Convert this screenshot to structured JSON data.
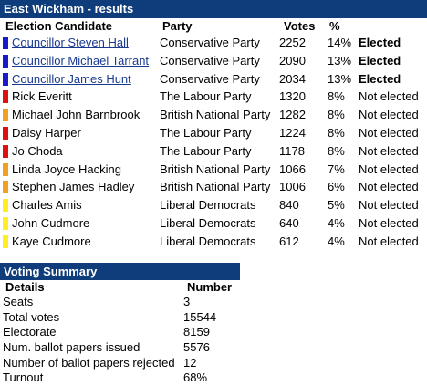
{
  "title": "East Wickham - results",
  "headers": {
    "candidate": "Election Candidate",
    "party": "Party",
    "votes": "Votes",
    "pct": "%"
  },
  "colors": {
    "header_bg": "#0f3c7a",
    "conservative": "#1a1acc",
    "labour": "#dd1111",
    "bnp": "#f2a020",
    "libdem": "#ffee22"
  },
  "candidates": [
    {
      "name": "Councillor Steven Hall",
      "party": "Conservative Party",
      "votes": "2252",
      "pct": "14%",
      "result": "Elected",
      "color": "#1a1acc",
      "link": true
    },
    {
      "name": "Councillor Michael Tarrant",
      "party": "Conservative Party",
      "votes": "2090",
      "pct": "13%",
      "result": "Elected",
      "color": "#1a1acc",
      "link": true
    },
    {
      "name": "Councillor James Hunt",
      "party": "Conservative Party",
      "votes": "2034",
      "pct": "13%",
      "result": "Elected",
      "color": "#1a1acc",
      "link": true
    },
    {
      "name": "Rick Everitt",
      "party": "The Labour Party",
      "votes": "1320",
      "pct": "8%",
      "result": "Not elected",
      "color": "#dd1111",
      "link": false
    },
    {
      "name": "Michael John Barnbrook",
      "party": "British National Party",
      "votes": "1282",
      "pct": "8%",
      "result": "Not elected",
      "color": "#f2a020",
      "link": false
    },
    {
      "name": "Daisy Harper",
      "party": "The Labour Party",
      "votes": "1224",
      "pct": "8%",
      "result": "Not elected",
      "color": "#dd1111",
      "link": false
    },
    {
      "name": "Jo Choda",
      "party": "The Labour Party",
      "votes": "1178",
      "pct": "8%",
      "result": "Not elected",
      "color": "#dd1111",
      "link": false
    },
    {
      "name": "Linda Joyce Hacking",
      "party": "British National Party",
      "votes": "1066",
      "pct": "7%",
      "result": "Not elected",
      "color": "#f2a020",
      "link": false
    },
    {
      "name": "Stephen James Hadley",
      "party": "British National Party",
      "votes": "1006",
      "pct": "6%",
      "result": "Not elected",
      "color": "#f2a020",
      "link": false
    },
    {
      "name": "Charles Amis",
      "party": "Liberal Democrats",
      "votes": "840",
      "pct": "5%",
      "result": "Not elected",
      "color": "#ffee22",
      "link": false
    },
    {
      "name": "John Cudmore",
      "party": "Liberal Democrats",
      "votes": "640",
      "pct": "4%",
      "result": "Not elected",
      "color": "#ffee22",
      "link": false
    },
    {
      "name": "Kaye Cudmore",
      "party": "Liberal Democrats",
      "votes": "612",
      "pct": "4%",
      "result": "Not elected",
      "color": "#ffee22",
      "link": false
    }
  ],
  "summary": {
    "title": "Voting Summary",
    "headers": {
      "details": "Details",
      "number": "Number"
    },
    "rows": [
      {
        "label": "Seats",
        "value": "3"
      },
      {
        "label": "Total votes",
        "value": "15544"
      },
      {
        "label": "Electorate",
        "value": "8159"
      },
      {
        "label": "Num. ballot papers issued",
        "value": "5576"
      },
      {
        "label": "Number of ballot papers rejected",
        "value": "12"
      },
      {
        "label": "Turnout",
        "value": "68%"
      }
    ]
  }
}
